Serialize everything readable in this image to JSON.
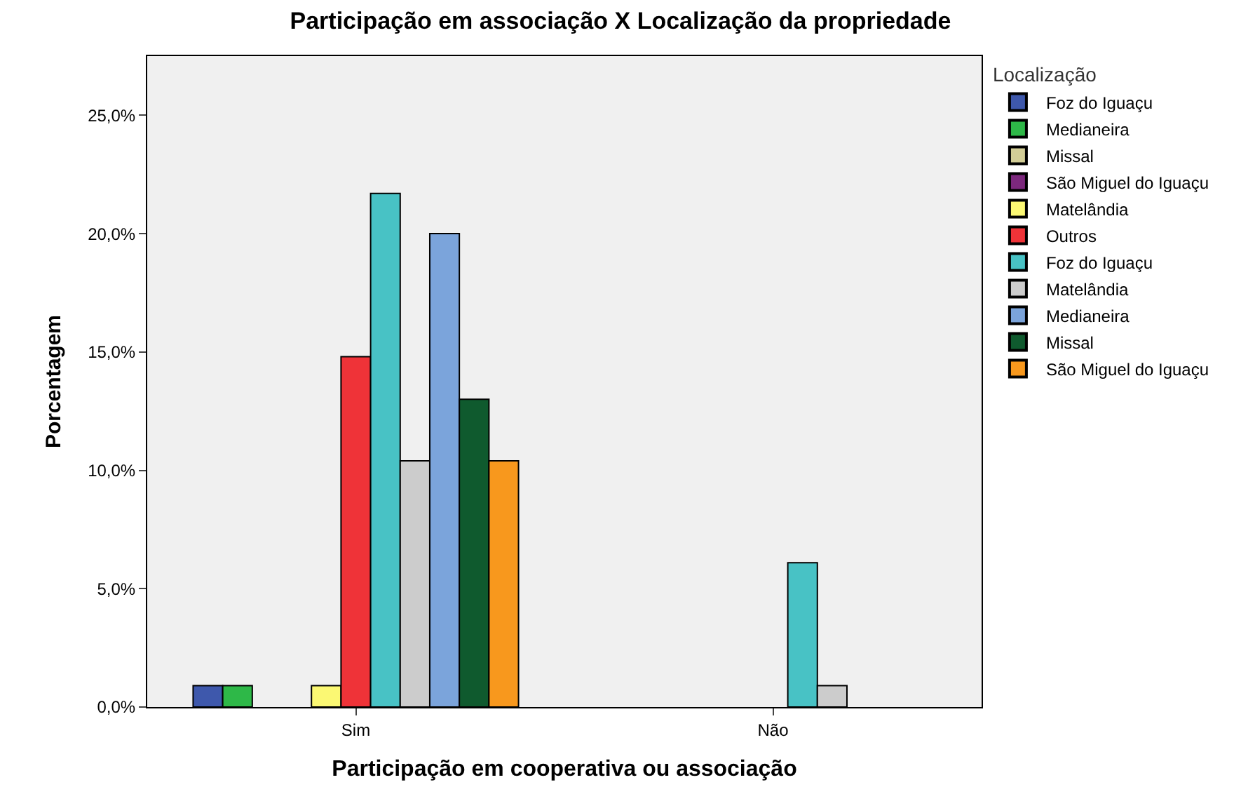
{
  "chart_data": {
    "type": "bar",
    "title": "Participação em associação X Localização da propriedade",
    "xlabel": "Participação em cooperativa ou associação",
    "ylabel": "Porcentagem",
    "legend_title": "Localização",
    "categories": [
      "Sim",
      "Não"
    ],
    "series": [
      {
        "name": "Foz do Iguaçu",
        "color": "#3e58ac",
        "values": [
          0.9,
          null
        ]
      },
      {
        "name": "Medianeira",
        "color": "#2eb848",
        "values": [
          0.9,
          null
        ]
      },
      {
        "name": "Missal",
        "color": "#d3ce97",
        "values": [
          null,
          null
        ]
      },
      {
        "name": "São Miguel do Iguaçu",
        "color": "#7c287d",
        "values": [
          null,
          null
        ]
      },
      {
        "name": "Matelândia",
        "color": "#fbf873",
        "values": [
          0.9,
          null
        ]
      },
      {
        "name": "Outros",
        "color": "#ef3338",
        "values": [
          14.8,
          null
        ]
      },
      {
        "name": "Foz do Iguaçu",
        "color": "#48c2c5",
        "values": [
          21.7,
          6.1
        ]
      },
      {
        "name": "Matelândia",
        "color": "#cccccc",
        "values": [
          10.4,
          0.9
        ]
      },
      {
        "name": "Medianeira",
        "color": "#7ba4db",
        "values": [
          20.0,
          null
        ]
      },
      {
        "name": "Missal",
        "color": "#0f5a2e",
        "values": [
          13.0,
          null
        ]
      },
      {
        "name": "São Miguel do Iguaçu",
        "color": "#f8981d",
        "values": [
          10.4,
          null
        ]
      }
    ],
    "ylim": [
      0,
      27.5
    ],
    "yticks": [
      {
        "value": 0,
        "label": "0,0%"
      },
      {
        "value": 5,
        "label": "5,0%"
      },
      {
        "value": 10,
        "label": "10,0%"
      },
      {
        "value": 15,
        "label": "15,0%"
      },
      {
        "value": 20,
        "label": "20,0%"
      },
      {
        "value": 25,
        "label": "25,0%"
      }
    ],
    "grid": false,
    "legend": "top right"
  }
}
